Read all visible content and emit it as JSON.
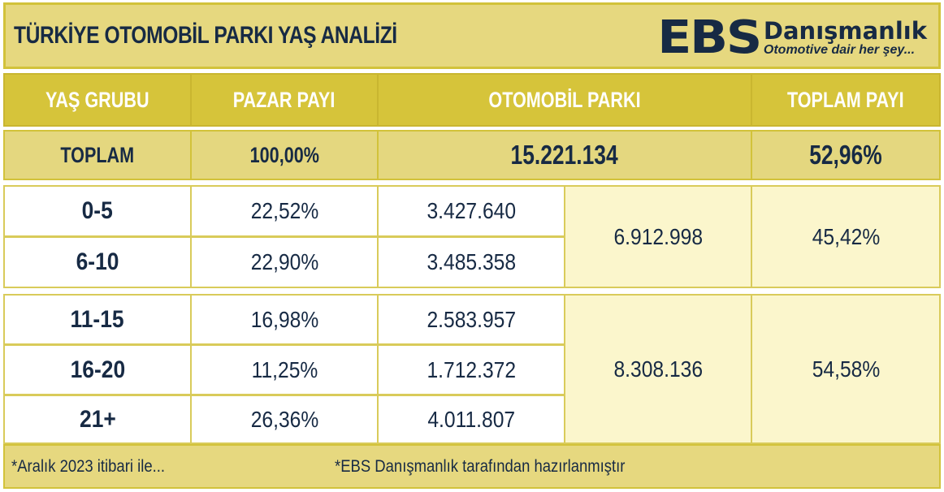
{
  "header": {
    "title": "TÜRKİYE OTOMOBİL PARKI YAŞ ANALİZİ",
    "logo": {
      "mark": "EBS",
      "name": "Danışmanlık",
      "tagline": "Otomotive dair her şey..."
    }
  },
  "colors": {
    "title_bg": "#e6d87f",
    "header_bg": "#d6c43a",
    "total_bg": "#e4d77f",
    "merged_bg": "#fbf6cc",
    "text": "#172a44"
  },
  "chart_data": {
    "type": "table",
    "columns": [
      "YAŞ GRUBU",
      "PAZAR PAYI",
      "OTOMOBİL PARKI",
      "TOPLAM PAYI"
    ],
    "total": {
      "label": "TOPLAM",
      "share": "100,00%",
      "park": "15.221.134",
      "total_share": "52,96%"
    },
    "rows": [
      {
        "group": "0-5",
        "share": "22,52%",
        "park": "3.427.640"
      },
      {
        "group": "6-10",
        "share": "22,90%",
        "park": "3.485.358"
      },
      {
        "group": "11-15",
        "share": "16,98%",
        "park": "2.583.957"
      },
      {
        "group": "16-20",
        "share": "11,25%",
        "park": "1.712.372"
      },
      {
        "group": "21+",
        "share": "26,36%",
        "park": "4.011.807"
      }
    ],
    "subtotals": [
      {
        "park": "6.912.998",
        "share": "45,42%"
      },
      {
        "park": "8.308.136",
        "share": "54,58%"
      }
    ]
  },
  "footer": {
    "left": "*Aralık 2023 itibari ile...",
    "right": "*EBS Danışmanlık tarafından hazırlanmıştır"
  }
}
